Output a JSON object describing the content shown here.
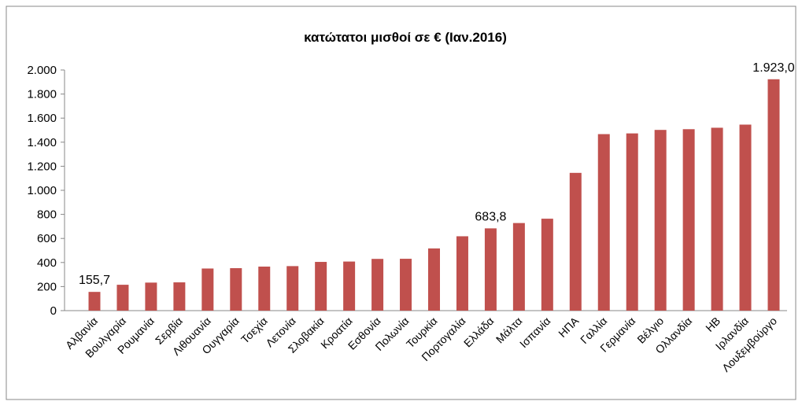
{
  "chart_data": {
    "type": "bar",
    "title": "κατώτατοι μισθοί σε € (Ιαν.2016)",
    "categories": [
      "Αλβανία",
      "Βουλγαρία",
      "Ρουμανία",
      "Σερβία",
      "Λιθουανία",
      "Ουγγαρία",
      "Τσεχία",
      "Λετονία",
      "Σλοβακία",
      "Κροατία",
      "Εσθονία",
      "Πολωνία",
      "Τουρκία",
      "Πορτογαλία",
      "Ελλάδα",
      "Μάλτα",
      "Ισπανία",
      "ΗΠΑ",
      "Γαλλία",
      "Γερμανία",
      "Βέλγιο",
      "Ολλανδία",
      "ΗΒ",
      "Ιρλανδία",
      "Λουξεμβούργο"
    ],
    "values": [
      155.7,
      215,
      233,
      235,
      350,
      353,
      366,
      370,
      405,
      408,
      430,
      431,
      517,
      618,
      683.8,
      728,
      764,
      1145,
      1467,
      1473,
      1502,
      1508,
      1520,
      1546,
      1923.0
    ],
    "value_labels": [
      "155,7",
      null,
      null,
      null,
      null,
      null,
      null,
      null,
      null,
      null,
      null,
      null,
      null,
      null,
      "683,8",
      null,
      null,
      null,
      null,
      null,
      null,
      null,
      null,
      null,
      "1.923,0"
    ],
    "color": "#c0504d",
    "ylim": [
      0,
      2000
    ],
    "yticks": [
      0,
      200,
      400,
      600,
      800,
      {
        "value": 1000,
        "label": "1.000"
      },
      {
        "value": 1200,
        "label": "1.200"
      },
      {
        "value": 1400,
        "label": "1.400"
      },
      {
        "value": 1600,
        "label": "1.600"
      },
      {
        "value": 1800,
        "label": "1.800"
      },
      {
        "value": 2000,
        "label": "2.000"
      }
    ]
  }
}
